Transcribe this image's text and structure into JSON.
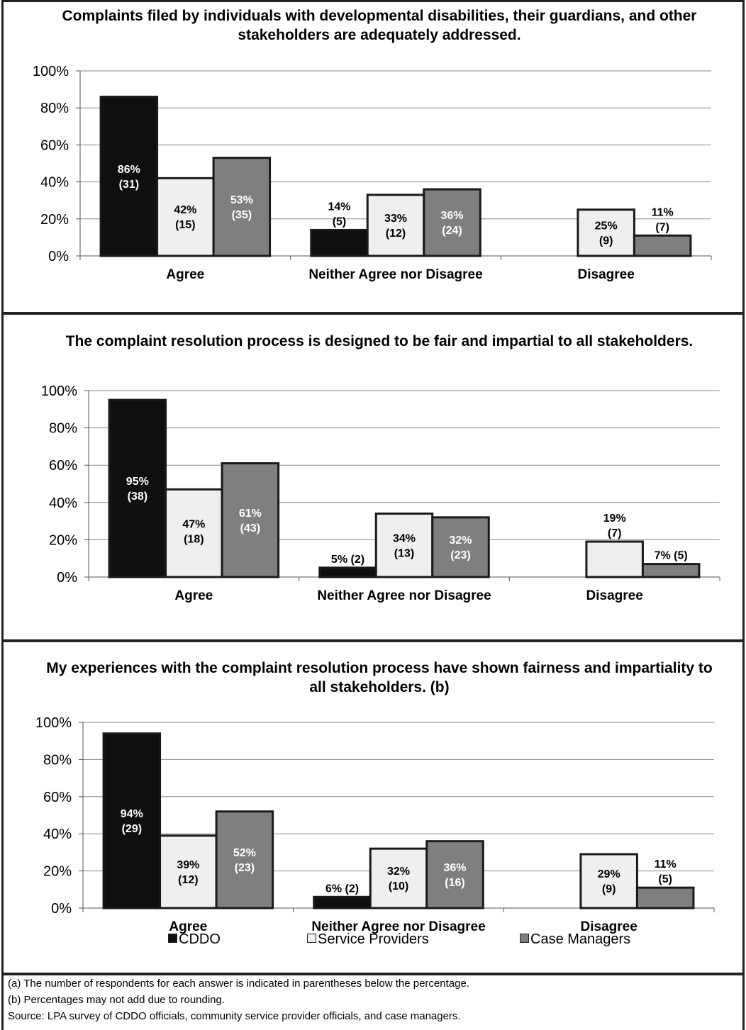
{
  "chart_data": [
    {
      "type": "bar",
      "title": "Complaints filed by individuals with developmental disabilities, their guardians, and other stakeholders are adequately addressed.",
      "categories": [
        "Agree",
        "Neither Agree nor Disagree",
        "Disagree"
      ],
      "ylim": [
        0,
        100
      ],
      "yticks": [
        "0%",
        "20%",
        "40%",
        "60%",
        "80%",
        "100%"
      ],
      "grid": true,
      "series": [
        {
          "name": "CDDO",
          "values": [
            86,
            14,
            null
          ],
          "labels": [
            [
              "86%",
              "(31)"
            ],
            [
              "14%",
              "(5)"
            ],
            null
          ]
        },
        {
          "name": "Service Providers",
          "values": [
            42,
            33,
            25
          ],
          "labels": [
            [
              "42%",
              "(15)"
            ],
            [
              "33%",
              "(12)"
            ],
            [
              "25%",
              "(9)"
            ]
          ]
        },
        {
          "name": "Case Managers",
          "values": [
            53,
            36,
            11
          ],
          "labels": [
            [
              "53%",
              "(35)"
            ],
            [
              "36%",
              "(24)"
            ],
            [
              "11%",
              "(7)"
            ]
          ]
        }
      ]
    },
    {
      "type": "bar",
      "title": "The complaint resolution process is designed to be fair and impartial to all stakeholders.",
      "categories": [
        "Agree",
        "Neither Agree nor Disagree",
        "Disagree"
      ],
      "ylim": [
        0,
        100
      ],
      "yticks": [
        "0%",
        "20%",
        "40%",
        "60%",
        "80%",
        "100%"
      ],
      "grid": true,
      "series": [
        {
          "name": "CDDO",
          "values": [
            95,
            5,
            null
          ],
          "labels": [
            [
              "95%",
              "(38)"
            ],
            [
              "5% (2)"
            ],
            null
          ]
        },
        {
          "name": "Service Providers",
          "values": [
            47,
            34,
            19
          ],
          "labels": [
            [
              "47%",
              "(18)"
            ],
            [
              "34%",
              "(13)"
            ],
            [
              "19%",
              "(7)"
            ]
          ]
        },
        {
          "name": "Case Managers",
          "values": [
            61,
            32,
            7
          ],
          "labels": [
            [
              "61%",
              "(43)"
            ],
            [
              "32%",
              "(23)"
            ],
            [
              "7% (5)"
            ]
          ]
        }
      ]
    },
    {
      "type": "bar",
      "title": "My experiences with the complaint resolution process have shown fairness and impartiality to all stakeholders. (b)",
      "categories": [
        "Agree",
        "Neither Agree nor Disagree",
        "Disagree"
      ],
      "ylim": [
        0,
        100
      ],
      "yticks": [
        "0%",
        "20%",
        "40%",
        "60%",
        "80%",
        "100%"
      ],
      "grid": true,
      "legend": "bottom",
      "series": [
        {
          "name": "CDDO",
          "values": [
            94,
            6,
            null
          ],
          "labels": [
            [
              "94%",
              "(29)"
            ],
            [
              "6% (2)"
            ],
            null
          ]
        },
        {
          "name": "Service Providers",
          "values": [
            39,
            32,
            29
          ],
          "labels": [
            [
              "39%",
              "(12)"
            ],
            [
              "32%",
              "(10)"
            ],
            [
              "29%",
              "(9)"
            ]
          ]
        },
        {
          "name": "Case Managers",
          "values": [
            52,
            36,
            11
          ],
          "labels": [
            [
              "52%",
              "(23)"
            ],
            [
              "36%",
              "(16)"
            ],
            [
              "11%",
              "(5)"
            ]
          ]
        }
      ]
    }
  ],
  "colors": {
    "CDDO": "#0f0f0f",
    "Service Providers": "#efefef",
    "Case Managers": "#7f7f7f"
  },
  "legend": {
    "items": [
      "CDDO",
      "Service Providers",
      "Case Managers"
    ]
  },
  "notes": {
    "a": "(a) The number of respondents for each answer is indicated in parentheses below the percentage.",
    "b": "(b) Percentages may not add due to rounding.",
    "source": "Source: LPA survey of CDDO officials, community service provider officials, and case managers."
  }
}
